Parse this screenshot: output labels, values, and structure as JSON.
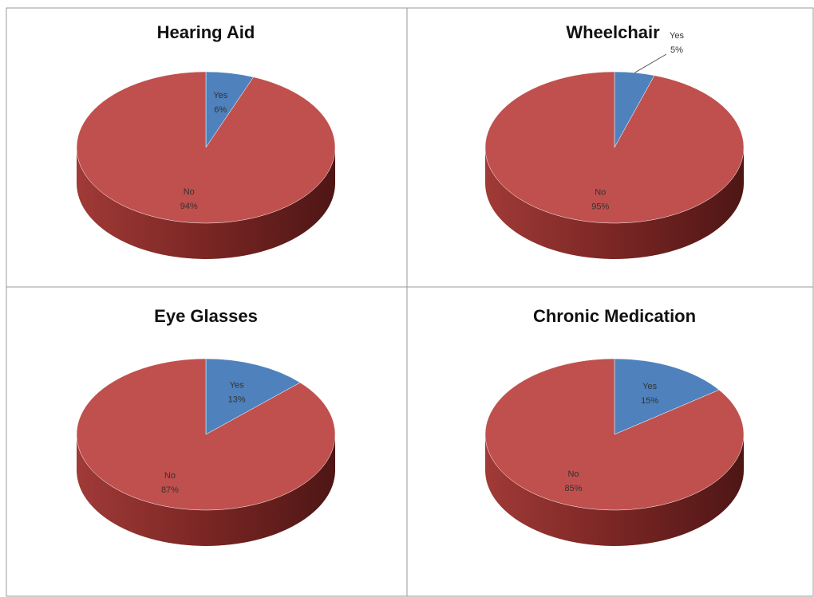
{
  "chart_data": [
    {
      "type": "pie",
      "title": "Hearing Aid",
      "categories": [
        "Yes",
        "No"
      ],
      "values": [
        6,
        94
      ],
      "value_labels": [
        "6%",
        "94%"
      ],
      "colors": [
        "#4f81bd",
        "#c0504d"
      ]
    },
    {
      "type": "pie",
      "title": "Wheelchair",
      "categories": [
        "Yes",
        "No"
      ],
      "values": [
        5,
        95
      ],
      "value_labels": [
        "5%",
        "95%"
      ],
      "colors": [
        "#4f81bd",
        "#c0504d"
      ]
    },
    {
      "type": "pie",
      "title": "Eye Glasses",
      "categories": [
        "Yes",
        "No"
      ],
      "values": [
        13,
        87
      ],
      "value_labels": [
        "13%",
        "87%"
      ],
      "colors": [
        "#4f81bd",
        "#c0504d"
      ]
    },
    {
      "type": "pie",
      "title": "Chronic Medication",
      "categories": [
        "Yes",
        "No"
      ],
      "values": [
        15,
        85
      ],
      "value_labels": [
        "15%",
        "85%"
      ],
      "colors": [
        "#4f81bd",
        "#c0504d"
      ]
    }
  ]
}
